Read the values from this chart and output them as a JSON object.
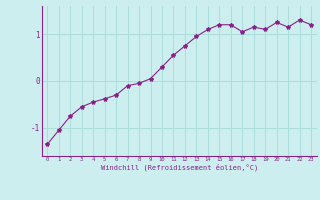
{
  "x": [
    0,
    1,
    2,
    3,
    4,
    5,
    6,
    7,
    8,
    9,
    10,
    11,
    12,
    13,
    14,
    15,
    16,
    17,
    18,
    19,
    20,
    21,
    22,
    23
  ],
  "y": [
    -1.35,
    -1.05,
    -0.75,
    -0.55,
    -0.45,
    -0.38,
    -0.3,
    -0.1,
    -0.05,
    0.05,
    0.3,
    0.55,
    0.75,
    0.95,
    1.1,
    1.2,
    1.2,
    1.05,
    1.15,
    1.1,
    1.25,
    1.15,
    1.3,
    1.2
  ],
  "line_color": "#882288",
  "marker": "*",
  "marker_size": 3,
  "bg_color": "#cceeee",
  "grid_color": "#aadddd",
  "axis_color": "#882288",
  "xlabel": "Windchill (Refroidissement éolien,°C)",
  "xlim": [
    -0.5,
    23.5
  ],
  "ylim": [
    -1.6,
    1.6
  ],
  "yticks": [
    -1,
    0,
    1
  ],
  "xticks": [
    0,
    1,
    2,
    3,
    4,
    5,
    6,
    7,
    8,
    9,
    10,
    11,
    12,
    13,
    14,
    15,
    16,
    17,
    18,
    19,
    20,
    21,
    22,
    23
  ]
}
